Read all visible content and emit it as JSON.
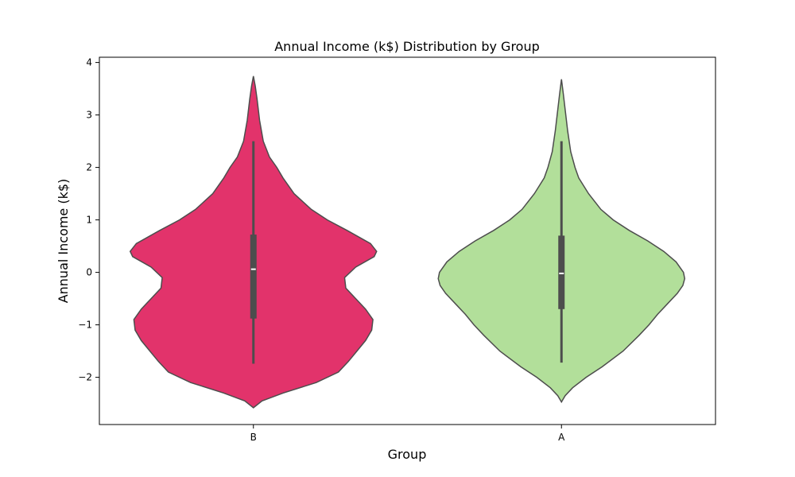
{
  "chart_data": {
    "type": "violin",
    "title": "Annual Income (k$) Distribution by Group",
    "xlabel": "Group",
    "ylabel": "Annual Income (k$)",
    "ylim": [
      -2.9,
      4.1
    ],
    "yticks": [
      4,
      3,
      2,
      1,
      0,
      -1,
      -2
    ],
    "ytick_labels": [
      "4",
      "3",
      "2",
      "1",
      "0",
      "−1",
      "−2"
    ],
    "grid": false,
    "categories": [
      "B",
      "A"
    ],
    "colors": [
      "#e2336b",
      "#b2df9a"
    ],
    "edge_color": "#4d4d4d",
    "violins": [
      {
        "category": "B",
        "median": 0.06,
        "q1": -0.88,
        "q3": 0.72,
        "whisker_low": -1.74,
        "whisker_high": 2.5,
        "min": -2.58,
        "max": 3.74,
        "density": [
          [
            -2.58,
            0.0
          ],
          [
            -2.45,
            0.07
          ],
          [
            -2.3,
            0.24
          ],
          [
            -2.1,
            0.51
          ],
          [
            -1.9,
            0.69
          ],
          [
            -1.7,
            0.77
          ],
          [
            -1.5,
            0.84
          ],
          [
            -1.3,
            0.91
          ],
          [
            -1.1,
            0.96
          ],
          [
            -0.9,
            0.97
          ],
          [
            -0.7,
            0.91
          ],
          [
            -0.5,
            0.83
          ],
          [
            -0.3,
            0.75
          ],
          [
            -0.1,
            0.74
          ],
          [
            0.1,
            0.83
          ],
          [
            0.3,
            0.98
          ],
          [
            0.4,
            1.0
          ],
          [
            0.55,
            0.95
          ],
          [
            0.8,
            0.76
          ],
          [
            1.0,
            0.6
          ],
          [
            1.2,
            0.47
          ],
          [
            1.5,
            0.33
          ],
          [
            1.8,
            0.24
          ],
          [
            2.0,
            0.19
          ],
          [
            2.2,
            0.13
          ],
          [
            2.5,
            0.08
          ],
          [
            2.9,
            0.05
          ],
          [
            3.3,
            0.03
          ],
          [
            3.55,
            0.015
          ],
          [
            3.74,
            0.0
          ]
        ]
      },
      {
        "category": "A",
        "median": -0.02,
        "q1": -0.7,
        "q3": 0.7,
        "whisker_low": -1.72,
        "whisker_high": 2.5,
        "min": -2.47,
        "max": 3.68,
        "density": [
          [
            -2.47,
            0.0
          ],
          [
            -2.35,
            0.03
          ],
          [
            -2.2,
            0.09
          ],
          [
            -2.0,
            0.2
          ],
          [
            -1.8,
            0.33
          ],
          [
            -1.5,
            0.5
          ],
          [
            -1.2,
            0.63
          ],
          [
            -1.0,
            0.71
          ],
          [
            -0.8,
            0.78
          ],
          [
            -0.6,
            0.86
          ],
          [
            -0.4,
            0.94
          ],
          [
            -0.25,
            0.985
          ],
          [
            -0.12,
            1.0
          ],
          [
            0.0,
            0.99
          ],
          [
            0.2,
            0.93
          ],
          [
            0.4,
            0.83
          ],
          [
            0.6,
            0.7
          ],
          [
            0.8,
            0.55
          ],
          [
            1.0,
            0.42
          ],
          [
            1.2,
            0.32
          ],
          [
            1.5,
            0.22
          ],
          [
            1.8,
            0.14
          ],
          [
            2.0,
            0.11
          ],
          [
            2.3,
            0.075
          ],
          [
            2.7,
            0.05
          ],
          [
            3.1,
            0.03
          ],
          [
            3.4,
            0.015
          ],
          [
            3.68,
            0.0
          ]
        ]
      }
    ]
  }
}
